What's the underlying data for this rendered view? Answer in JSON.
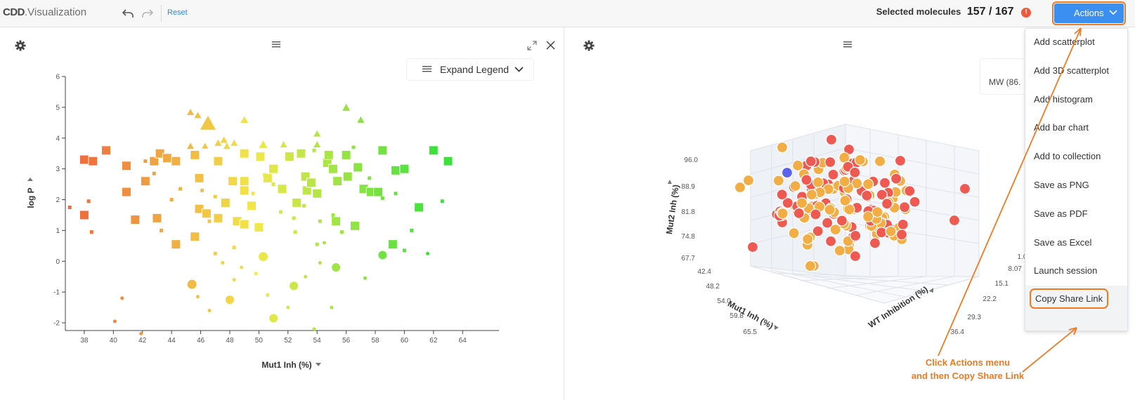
{
  "app": {
    "logo_brand": "CDD",
    "logo_text": "Visualization",
    "reset_label": "Reset"
  },
  "header": {
    "selected_label": "Selected molecules",
    "selected_count": "157 / 167",
    "alert_symbol": "!",
    "actions_label": "Actions"
  },
  "colors": {
    "accent": "#3b8ff0",
    "annotation": "#f07a22",
    "link": "#2f8bdc"
  },
  "left_panel": {
    "legend_button": "Expand Legend",
    "chart_data": {
      "type": "scatter",
      "xlabel": "Mut1 Inh (%)",
      "ylabel": "log P",
      "x_ticks": [
        "38",
        "40",
        "42",
        "44",
        "46",
        "48",
        "50",
        "52",
        "54",
        "56",
        "58",
        "60",
        "62",
        "64"
      ],
      "y_ticks": [
        "6",
        "5",
        "4",
        "3",
        "2",
        "1",
        "0",
        "-1",
        "-2"
      ],
      "xlim": [
        36.7,
        66.5
      ],
      "ylim": [
        -2.25,
        6
      ],
      "color_scale": [
        "#ef6a3c",
        "#f2e84a",
        "#3ee03e"
      ],
      "points": [
        {
          "x": 38.0,
          "y": 3.3,
          "s": "square",
          "z": 13
        },
        {
          "x": 38.6,
          "y": 3.25,
          "s": "square",
          "z": 13
        },
        {
          "x": 39.5,
          "y": 3.6,
          "s": "square",
          "z": 13
        },
        {
          "x": 38.0,
          "y": 1.5,
          "s": "square",
          "z": 13
        },
        {
          "x": 40.9,
          "y": 3.1,
          "s": "square",
          "z": 13
        },
        {
          "x": 40.9,
          "y": 2.25,
          "s": "square",
          "z": 13
        },
        {
          "x": 41.5,
          "y": 1.35,
          "s": "square",
          "z": 13
        },
        {
          "x": 42.2,
          "y": 2.6,
          "s": "square",
          "z": 13
        },
        {
          "x": 42.8,
          "y": 3.25,
          "s": "square",
          "z": 13
        },
        {
          "x": 43.2,
          "y": 3.5,
          "s": "square",
          "z": 13
        },
        {
          "x": 43.0,
          "y": 1.4,
          "s": "square",
          "z": 13
        },
        {
          "x": 43.7,
          "y": 3.35,
          "s": "square",
          "z": 13
        },
        {
          "x": 44.3,
          "y": 3.25,
          "s": "square",
          "z": 13
        },
        {
          "x": 44.3,
          "y": 0.55,
          "s": "square",
          "z": 13
        },
        {
          "x": 45.6,
          "y": 3.45,
          "s": "square",
          "z": 13
        },
        {
          "x": 45.9,
          "y": 2.7,
          "s": "square",
          "z": 13
        },
        {
          "x": 45.9,
          "y": 1.7,
          "s": "square",
          "z": 13
        },
        {
          "x": 45.6,
          "y": 0.8,
          "s": "square",
          "z": 13
        },
        {
          "x": 46.4,
          "y": 1.55,
          "s": "square",
          "z": 13
        },
        {
          "x": 47.2,
          "y": 3.25,
          "s": "square",
          "z": 13
        },
        {
          "x": 47.2,
          "y": 1.4,
          "s": "square",
          "z": 13
        },
        {
          "x": 47.7,
          "y": 1.9,
          "s": "square",
          "z": 13
        },
        {
          "x": 48.2,
          "y": 2.6,
          "s": "square",
          "z": 13
        },
        {
          "x": 48.5,
          "y": 1.3,
          "s": "square",
          "z": 13
        },
        {
          "x": 49.0,
          "y": 3.5,
          "s": "square",
          "z": 13
        },
        {
          "x": 49.0,
          "y": 2.6,
          "s": "square",
          "z": 13
        },
        {
          "x": 49.0,
          "y": 2.3,
          "s": "square",
          "z": 13
        },
        {
          "x": 49.0,
          "y": 1.2,
          "s": "square",
          "z": 13
        },
        {
          "x": 49.5,
          "y": 1.8,
          "s": "square",
          "z": 13
        },
        {
          "x": 50.0,
          "y": 1.1,
          "s": "square",
          "z": 13
        },
        {
          "x": 50.1,
          "y": 3.4,
          "s": "square",
          "z": 13
        },
        {
          "x": 50.6,
          "y": 2.7,
          "s": "square",
          "z": 13
        },
        {
          "x": 51.0,
          "y": 3.0,
          "s": "square",
          "z": 13
        },
        {
          "x": 51.6,
          "y": 2.35,
          "s": "square",
          "z": 13
        },
        {
          "x": 52.1,
          "y": 3.4,
          "s": "square",
          "z": 13
        },
        {
          "x": 52.6,
          "y": 1.9,
          "s": "square",
          "z": 13
        },
        {
          "x": 52.9,
          "y": 3.5,
          "s": "square",
          "z": 13
        },
        {
          "x": 53.2,
          "y": 2.75,
          "s": "square",
          "z": 13
        },
        {
          "x": 53.3,
          "y": 2.3,
          "s": "square",
          "z": 13
        },
        {
          "x": 53.6,
          "y": 2.55,
          "s": "square",
          "z": 13
        },
        {
          "x": 54.0,
          "y": 2.2,
          "s": "square",
          "z": 13
        },
        {
          "x": 54.7,
          "y": 3.2,
          "s": "square",
          "z": 13
        },
        {
          "x": 54.8,
          "y": 3.45,
          "s": "square",
          "z": 13
        },
        {
          "x": 55.1,
          "y": 3.0,
          "s": "square",
          "z": 13
        },
        {
          "x": 55.3,
          "y": 1.3,
          "s": "square",
          "z": 13
        },
        {
          "x": 55.4,
          "y": 2.6,
          "s": "square",
          "z": 13
        },
        {
          "x": 56.0,
          "y": 3.45,
          "s": "square",
          "z": 13
        },
        {
          "x": 56.1,
          "y": 2.75,
          "s": "square",
          "z": 13
        },
        {
          "x": 56.6,
          "y": 1.15,
          "s": "square",
          "z": 13
        },
        {
          "x": 56.8,
          "y": 3.05,
          "s": "square",
          "z": 13
        },
        {
          "x": 57.2,
          "y": 2.35,
          "s": "square",
          "z": 13
        },
        {
          "x": 57.7,
          "y": 2.25,
          "s": "square",
          "z": 13
        },
        {
          "x": 58.2,
          "y": 2.25,
          "s": "square",
          "z": 13
        },
        {
          "x": 58.5,
          "y": 3.6,
          "s": "square",
          "z": 13
        },
        {
          "x": 59.4,
          "y": 2.95,
          "s": "square",
          "z": 13
        },
        {
          "x": 60.0,
          "y": 3.0,
          "s": "square",
          "z": 13
        },
        {
          "x": 61.0,
          "y": 1.75,
          "s": "square",
          "z": 13
        },
        {
          "x": 62.0,
          "y": 3.6,
          "s": "square",
          "z": 13
        },
        {
          "x": 63.0,
          "y": 3.25,
          "s": "square",
          "z": 13
        },
        {
          "x": 59.2,
          "y": 0.55,
          "s": "square",
          "z": 13
        },
        {
          "x": 50.3,
          "y": 3.8,
          "s": "triangle",
          "z": 12
        },
        {
          "x": 45.3,
          "y": 4.85,
          "s": "triangle",
          "z": 10
        },
        {
          "x": 45.8,
          "y": 4.75,
          "s": "triangle",
          "z": 10
        },
        {
          "x": 46.5,
          "y": 4.5,
          "s": "triangle",
          "z": 22
        },
        {
          "x": 45.3,
          "y": 3.75,
          "s": "triangle",
          "z": 10
        },
        {
          "x": 47.6,
          "y": 3.95,
          "s": "triangle",
          "z": 10
        },
        {
          "x": 47.2,
          "y": 3.85,
          "s": "triangle",
          "z": 10
        },
        {
          "x": 48.3,
          "y": 3.85,
          "s": "triangle",
          "z": 10
        },
        {
          "x": 49.0,
          "y": 4.6,
          "s": "triangle",
          "z": 11
        },
        {
          "x": 47.8,
          "y": 3.75,
          "s": "triangle",
          "z": 10
        },
        {
          "x": 51.7,
          "y": 3.8,
          "s": "triangle",
          "z": 10
        },
        {
          "x": 54.0,
          "y": 3.8,
          "s": "triangle",
          "z": 10
        },
        {
          "x": 54.0,
          "y": 4.15,
          "s": "triangle",
          "z": 10
        },
        {
          "x": 56.0,
          "y": 5.0,
          "s": "triangle",
          "z": 11
        },
        {
          "x": 57.0,
          "y": 4.6,
          "s": "triangle",
          "z": 10
        },
        {
          "x": 46.3,
          "y": 3.75,
          "s": "triangle",
          "z": 9
        },
        {
          "x": 45.4,
          "y": -0.75,
          "s": "circle",
          "z": 13
        },
        {
          "x": 50.3,
          "y": 0.15,
          "s": "circle",
          "z": 13
        },
        {
          "x": 52.4,
          "y": -0.8,
          "s": "circle",
          "z": 12
        },
        {
          "x": 48.0,
          "y": -1.25,
          "s": "circle",
          "z": 12
        },
        {
          "x": 51.0,
          "y": -1.85,
          "s": "circle",
          "z": 12
        },
        {
          "x": 55.3,
          "y": -0.2,
          "s": "circle",
          "z": 12
        },
        {
          "x": 58.5,
          "y": 0.2,
          "s": "circle",
          "z": 12
        },
        {
          "x": 38.5,
          "y": 0.95,
          "s": "square",
          "z": 5
        },
        {
          "x": 38.3,
          "y": 1.95,
          "s": "square",
          "z": 5
        },
        {
          "x": 37.0,
          "y": 1.75,
          "s": "square",
          "z": 5
        },
        {
          "x": 42.2,
          "y": 3.25,
          "s": "square",
          "z": 5
        },
        {
          "x": 42.8,
          "y": 2.85,
          "s": "square",
          "z": 5
        },
        {
          "x": 44.6,
          "y": 2.35,
          "s": "square",
          "z": 5
        },
        {
          "x": 44.0,
          "y": 2.0,
          "s": "square",
          "z": 5
        },
        {
          "x": 43.3,
          "y": 1.0,
          "s": "square",
          "z": 5
        },
        {
          "x": 46.6,
          "y": 1.3,
          "s": "square",
          "z": 5
        },
        {
          "x": 46.1,
          "y": 2.3,
          "s": "square",
          "z": 5
        },
        {
          "x": 47.0,
          "y": 2.1,
          "s": "square",
          "z": 5
        },
        {
          "x": 49.6,
          "y": 2.2,
          "s": "square",
          "z": 5
        },
        {
          "x": 48.3,
          "y": 0.45,
          "s": "square",
          "z": 5
        },
        {
          "x": 51.0,
          "y": 2.5,
          "s": "square",
          "z": 5
        },
        {
          "x": 51.5,
          "y": 1.6,
          "s": "square",
          "z": 5
        },
        {
          "x": 52.4,
          "y": 1.4,
          "s": "square",
          "z": 5
        },
        {
          "x": 53.1,
          "y": 1.8,
          "s": "square",
          "z": 5
        },
        {
          "x": 53.8,
          "y": 3.6,
          "s": "square",
          "z": 5
        },
        {
          "x": 54.0,
          "y": 0.55,
          "s": "square",
          "z": 5
        },
        {
          "x": 55.1,
          "y": 1.5,
          "s": "square",
          "z": 5
        },
        {
          "x": 54.2,
          "y": 1.3,
          "s": "square",
          "z": 5
        },
        {
          "x": 55.7,
          "y": 0.95,
          "s": "square",
          "z": 5
        },
        {
          "x": 56.5,
          "y": 3.7,
          "s": "square",
          "z": 5
        },
        {
          "x": 57.6,
          "y": 2.7,
          "s": "square",
          "z": 5
        },
        {
          "x": 58.5,
          "y": 2.05,
          "s": "square",
          "z": 5
        },
        {
          "x": 59.4,
          "y": 2.2,
          "s": "square",
          "z": 5
        },
        {
          "x": 60.0,
          "y": 0.35,
          "s": "square",
          "z": 5
        },
        {
          "x": 60.5,
          "y": 1.0,
          "s": "square",
          "z": 5
        },
        {
          "x": 62.6,
          "y": 1.95,
          "s": "square",
          "z": 5
        },
        {
          "x": 50.4,
          "y": 2.8,
          "s": "square",
          "z": 5
        },
        {
          "x": 52.5,
          "y": 0.95,
          "s": "square",
          "z": 5
        },
        {
          "x": 47.0,
          "y": 0.25,
          "s": "square",
          "z": 5
        },
        {
          "x": 40.6,
          "y": -1.2,
          "s": "circle",
          "z": 5
        },
        {
          "x": 40.1,
          "y": -1.95,
          "s": "circle",
          "z": 5
        },
        {
          "x": 41.9,
          "y": -2.35,
          "s": "circle",
          "z": 5
        },
        {
          "x": 45.8,
          "y": -1.15,
          "s": "circle",
          "z": 5
        },
        {
          "x": 48.3,
          "y": -0.6,
          "s": "circle",
          "z": 5
        },
        {
          "x": 48.8,
          "y": -0.2,
          "s": "circle",
          "z": 5
        },
        {
          "x": 50.6,
          "y": -1.1,
          "s": "circle",
          "z": 5
        },
        {
          "x": 52.0,
          "y": -1.5,
          "s": "circle",
          "z": 5
        },
        {
          "x": 53.8,
          "y": -2.2,
          "s": "circle",
          "z": 5
        },
        {
          "x": 54.2,
          "y": -0.05,
          "s": "circle",
          "z": 5
        },
        {
          "x": 55.0,
          "y": -1.5,
          "s": "circle",
          "z": 5
        },
        {
          "x": 57.3,
          "y": -0.55,
          "s": "circle",
          "z": 5
        },
        {
          "x": 61.6,
          "y": 0.25,
          "s": "circle",
          "z": 5
        },
        {
          "x": 47.5,
          "y": -0.05,
          "s": "circle",
          "z": 5
        },
        {
          "x": 54.5,
          "y": 0.6,
          "s": "circle",
          "z": 5
        },
        {
          "x": 49.8,
          "y": -0.4,
          "s": "circle",
          "z": 5
        },
        {
          "x": 53.2,
          "y": -0.5,
          "s": "circle",
          "z": 5
        },
        {
          "x": 46.6,
          "y": -1.6,
          "s": "circle",
          "z": 5
        }
      ]
    }
  },
  "right_panel": {
    "legend_label": "MW (86.",
    "chart_data": {
      "type": "scatter",
      "xlabel": "Mut1 Inh (%)",
      "ylabel": "Mut2 Inh (%)",
      "zlabel": "WT Inhibition (%)",
      "x_ticks": [
        "42.4",
        "48.2",
        "54.0",
        "59.8",
        "65.5"
      ],
      "y_ticks": [
        "96.0",
        "88.9",
        "81.8",
        "74.8",
        "67.7"
      ],
      "z_ticks": [
        "36.4",
        "29.3",
        "22.2",
        "15.1",
        "8.07",
        "1.00"
      ]
    }
  },
  "actions_menu": {
    "items": [
      "Add scatterplot",
      "Add 3D scatterplot",
      "Add histogram",
      "Add bar chart",
      "Add to collection",
      "Save as PNG",
      "Save as PDF",
      "Save as Excel",
      "Launch session",
      "Copy Share Link"
    ]
  },
  "callout": {
    "line1": "Click Actions menu",
    "line2": "and then Copy Share Link"
  }
}
